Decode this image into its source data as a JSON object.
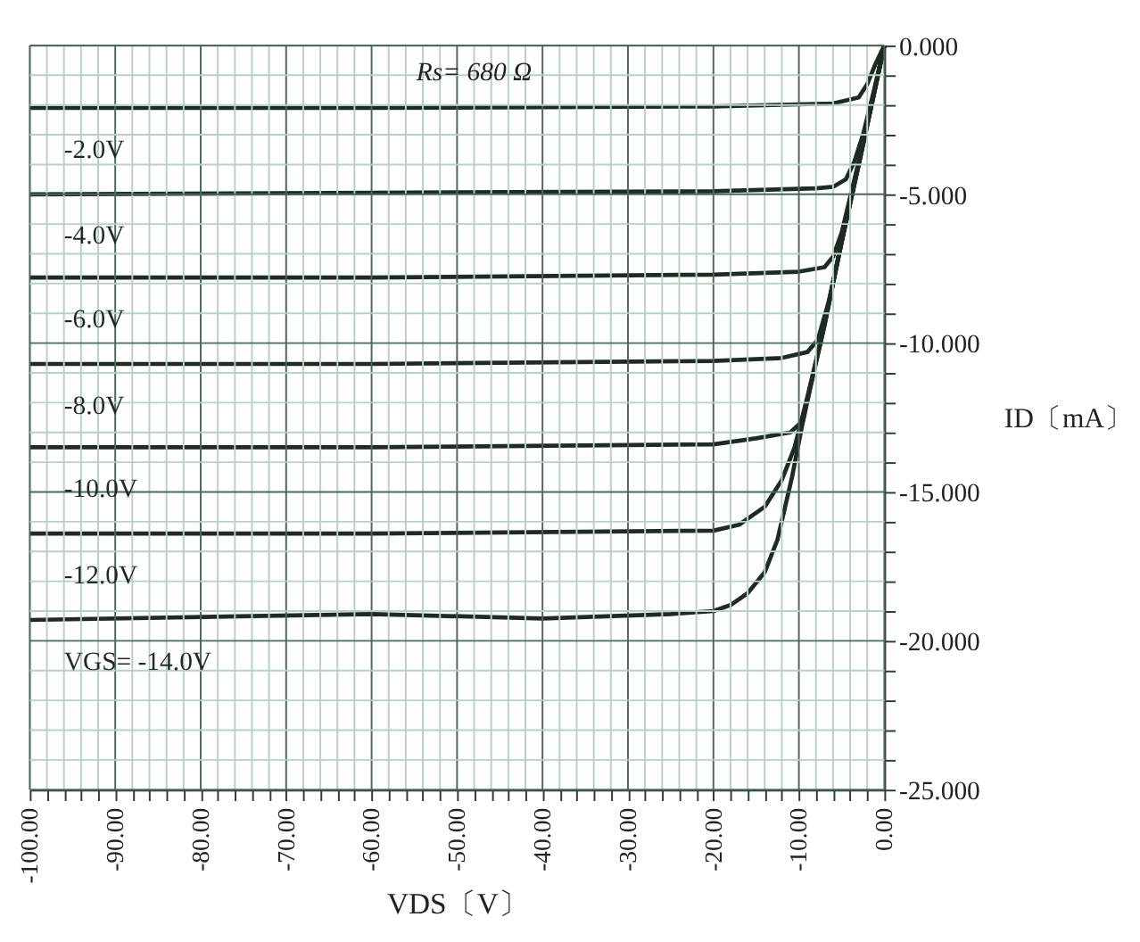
{
  "chart_data": {
    "type": "line",
    "xlabel": "VDS〔V〕",
    "ylabel": "ID〔mA〕",
    "annotations": [
      "Rs= 680 Ω"
    ],
    "xlim": [
      -100,
      0
    ],
    "ylim": [
      -25,
      0
    ],
    "xticks": [
      {
        "value": -100,
        "label": "-100.00"
      },
      {
        "value": -98,
        "label": null
      },
      {
        "value": -96,
        "label": null
      },
      {
        "value": -94,
        "label": null
      },
      {
        "value": -92,
        "label": null
      },
      {
        "value": -90,
        "label": "-90.00"
      },
      {
        "value": -88,
        "label": null
      },
      {
        "value": -86,
        "label": null
      },
      {
        "value": -84,
        "label": null
      },
      {
        "value": -82,
        "label": null
      },
      {
        "value": -80,
        "label": "-80.00"
      },
      {
        "value": -78,
        "label": null
      },
      {
        "value": -76,
        "label": null
      },
      {
        "value": -74,
        "label": null
      },
      {
        "value": -72,
        "label": null
      },
      {
        "value": -70,
        "label": "-70.00"
      },
      {
        "value": -68,
        "label": null
      },
      {
        "value": -66,
        "label": null
      },
      {
        "value": -64,
        "label": null
      },
      {
        "value": -62,
        "label": null
      },
      {
        "value": -60,
        "label": "-60.00"
      },
      {
        "value": -58,
        "label": null
      },
      {
        "value": -56,
        "label": null
      },
      {
        "value": -54,
        "label": null
      },
      {
        "value": -52,
        "label": null
      },
      {
        "value": -50,
        "label": "-50.00"
      },
      {
        "value": -48,
        "label": null
      },
      {
        "value": -46,
        "label": null
      },
      {
        "value": -44,
        "label": null
      },
      {
        "value": -42,
        "label": null
      },
      {
        "value": -40,
        "label": "-40.00"
      },
      {
        "value": -38,
        "label": null
      },
      {
        "value": -36,
        "label": null
      },
      {
        "value": -34,
        "label": null
      },
      {
        "value": -32,
        "label": null
      },
      {
        "value": -30,
        "label": "-30.00"
      },
      {
        "value": -28,
        "label": null
      },
      {
        "value": -26,
        "label": null
      },
      {
        "value": -24,
        "label": null
      },
      {
        "value": -22,
        "label": null
      },
      {
        "value": -20,
        "label": "-20.00"
      },
      {
        "value": -18,
        "label": null
      },
      {
        "value": -16,
        "label": null
      },
      {
        "value": -14,
        "label": null
      },
      {
        "value": -12,
        "label": null
      },
      {
        "value": -10,
        "label": "-10.00"
      },
      {
        "value": -8,
        "label": null
      },
      {
        "value": -6,
        "label": null
      },
      {
        "value": -4,
        "label": null
      },
      {
        "value": -2,
        "label": null
      },
      {
        "value": 0,
        "label": "0.00"
      }
    ],
    "yticks": [
      {
        "value": -25,
        "label": "-25.000"
      },
      {
        "value": -24,
        "label": null
      },
      {
        "value": -23,
        "label": null
      },
      {
        "value": -22,
        "label": null
      },
      {
        "value": -21,
        "label": null
      },
      {
        "value": -20,
        "label": "-20.000"
      },
      {
        "value": -19,
        "label": null
      },
      {
        "value": -18,
        "label": null
      },
      {
        "value": -17,
        "label": null
      },
      {
        "value": -16,
        "label": null
      },
      {
        "value": -15,
        "label": "-15.000"
      },
      {
        "value": -14,
        "label": null
      },
      {
        "value": -13,
        "label": null
      },
      {
        "value": -12,
        "label": null
      },
      {
        "value": -11,
        "label": null
      },
      {
        "value": -10,
        "label": "-10.000"
      },
      {
        "value": -9,
        "label": null
      },
      {
        "value": -8,
        "label": null
      },
      {
        "value": -7,
        "label": null
      },
      {
        "value": -6,
        "label": null
      },
      {
        "value": -5,
        "label": "-5.000"
      },
      {
        "value": -4,
        "label": null
      },
      {
        "value": -3,
        "label": null
      },
      {
        "value": -2,
        "label": null
      },
      {
        "value": -1,
        "label": null
      },
      {
        "value": 0,
        "label": "0.000"
      }
    ],
    "grid": true,
    "legend": false,
    "marker": "none",
    "line_style": "solid",
    "series": [
      {
        "name": "-2.0V",
        "color": "#1f2a22",
        "x": [
          -100,
          -60,
          -20,
          -6,
          -3,
          -2,
          -1,
          0
        ],
        "values": [
          -2.1,
          -2.1,
          -2.05,
          -1.95,
          -1.75,
          -1.3,
          -0.6,
          0
        ]
      },
      {
        "name": "-4.0V",
        "color": "#1f2a22",
        "x": [
          -100,
          -60,
          -20,
          -8,
          -6,
          -4.5,
          -3.5,
          -2.5,
          -1.2,
          0
        ],
        "values": [
          -5.0,
          -4.95,
          -4.9,
          -4.8,
          -4.75,
          -4.5,
          -3.9,
          -3.0,
          -1.5,
          0
        ]
      },
      {
        "name": "-6.0V",
        "color": "#1f2a22",
        "x": [
          -100,
          -60,
          -20,
          -10,
          -7,
          -6,
          -5,
          -3,
          -1.5,
          0
        ],
        "values": [
          -7.8,
          -7.8,
          -7.7,
          -7.6,
          -7.45,
          -7.1,
          -6.3,
          -3.9,
          -2.0,
          0
        ]
      },
      {
        "name": "-8.0V",
        "color": "#1f2a22",
        "x": [
          -100,
          -60,
          -20,
          -12,
          -9,
          -7.8,
          -6.5,
          -5,
          -3,
          -1.5,
          0
        ],
        "values": [
          -10.7,
          -10.7,
          -10.6,
          -10.5,
          -10.3,
          -9.9,
          -8.6,
          -6.6,
          -4.0,
          -2.0,
          0
        ]
      },
      {
        "name": "-10.0V",
        "color": "#1f2a22",
        "x": [
          -100,
          -60,
          -20,
          -15,
          -11,
          -9.5,
          -8.5,
          -7,
          -5,
          -3,
          -1.5,
          0
        ],
        "values": [
          -13.5,
          -13.5,
          -13.4,
          -13.2,
          -13.0,
          -12.6,
          -11.3,
          -9.4,
          -6.6,
          -4.0,
          -2.0,
          0
        ]
      },
      {
        "name": "-12.0V",
        "color": "#1f2a22",
        "x": [
          -100,
          -60,
          -20,
          -17,
          -14,
          -12,
          -10.5,
          -9,
          -7,
          -5,
          -3,
          -1.5,
          0
        ],
        "values": [
          -16.4,
          -16.4,
          -16.3,
          -16.1,
          -15.5,
          -14.6,
          -13.5,
          -11.8,
          -9.4,
          -6.6,
          -4.0,
          -2.0,
          0
        ]
      },
      {
        "name": "VGS= -14.0V",
        "color": "#1f2a22",
        "x": [
          -100,
          -60,
          -40,
          -25,
          -20,
          -18,
          -16,
          -14,
          -12.5,
          -10.8,
          -9.1,
          -7.5,
          -5,
          -3.8,
          -2,
          0
        ],
        "values": [
          -19.3,
          -19.1,
          -19.25,
          -19.1,
          -19.0,
          -18.8,
          -18.4,
          -17.7,
          -16.6,
          -14.5,
          -12.0,
          -10.0,
          -6.6,
          -5.0,
          -2.6,
          0
        ]
      }
    ]
  }
}
